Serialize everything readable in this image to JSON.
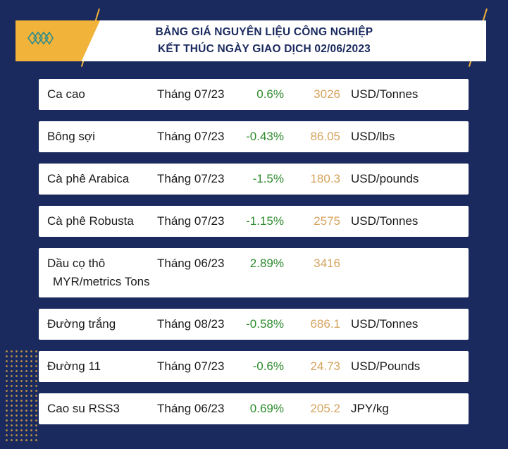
{
  "header": {
    "title_line1": "BẢNG GIÁ NGUYÊN LIỆU CÔNG NGHIỆP",
    "title_line2": "KẾT THÚC NGÀY GIAO DỊCH 02/06/2023",
    "logo_icon": "diamond-chain-logo-icon"
  },
  "colors": {
    "background": "#1a2a5e",
    "accent": "#f2b33a",
    "change_text": "#2e8b2e",
    "price_text": "#d6a35e"
  },
  "rows": [
    {
      "name": "Ca cao",
      "month": "Tháng 07/23",
      "change": "0.6%",
      "price": "3026",
      "unit": "USD/Tonnes"
    },
    {
      "name": "Bông sợi",
      "month": "Tháng 07/23",
      "change": "-0.43%",
      "price": "86.05",
      "unit": "USD/lbs"
    },
    {
      "name": "Cà phê Arabica",
      "month": "Tháng 07/23",
      "change": "-1.5%",
      "price": "180.3",
      "unit": "USD/pounds"
    },
    {
      "name": "Cà phê Robusta",
      "month": "Tháng 07/23",
      "change": "-1.15%",
      "price": "2575",
      "unit": "USD/Tonnes"
    },
    {
      "name": "Dầu cọ thô",
      "month": "Tháng 06/23",
      "change": "2.89%",
      "price": "3416",
      "unit": "MYR/metrics Tons"
    },
    {
      "name": "Đường trắng",
      "month": "Tháng 08/23",
      "change": "-0.58%",
      "price": "686.1",
      "unit": "USD/Tonnes"
    },
    {
      "name": "Đường 11",
      "month": "Tháng 07/23",
      "change": "-0.6%",
      "price": "24.73",
      "unit": "USD/Pounds"
    },
    {
      "name": "Cao su RSS3",
      "month": "Tháng 06/23",
      "change": "0.69%",
      "price": "205.2",
      "unit": "JPY/kg"
    }
  ]
}
